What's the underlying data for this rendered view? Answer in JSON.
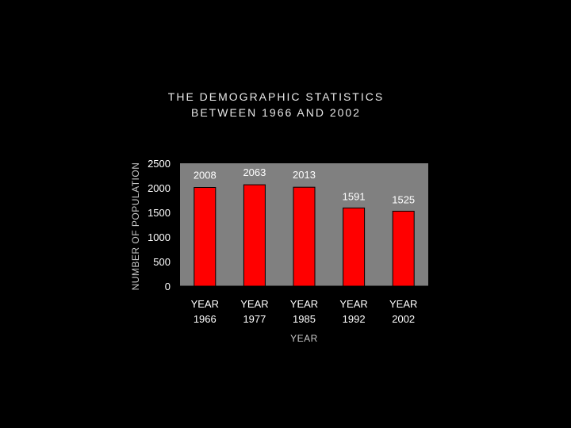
{
  "page": {
    "background": "#000000"
  },
  "chart_data": {
    "type": "bar",
    "title_lines": [
      "THE DEMOGRAPHIC STATISTICS",
      "BETWEEN 1966 AND 2002"
    ],
    "categories": [
      [
        "YEAR",
        "1966"
      ],
      [
        "YEAR",
        "1977"
      ],
      [
        "YEAR",
        "1985"
      ],
      [
        "YEAR",
        "1992"
      ],
      [
        "YEAR",
        "2002"
      ]
    ],
    "values": [
      2008,
      2063,
      2013,
      1591,
      1525
    ],
    "data_labels": [
      "2008",
      "2063",
      "2013",
      "1591",
      "1525"
    ],
    "xlabel": "YEAR",
    "ylabel": "NUMBER OF POPULATION",
    "ylim": [
      0,
      2500
    ],
    "yticks": [
      0,
      500,
      1000,
      1500,
      2000,
      2500
    ],
    "grid": false,
    "legend": "none",
    "colors": {
      "bar": "#ff0000",
      "bar_outline": "#000000",
      "plot_area": "#808080",
      "text": "#ffffff"
    }
  }
}
